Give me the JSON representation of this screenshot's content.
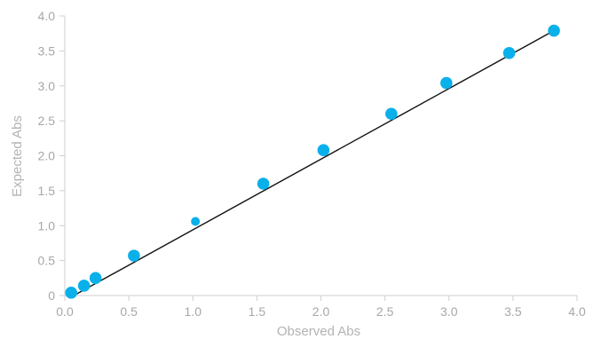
{
  "chart_data": {
    "type": "scatter",
    "title": "",
    "xlabel": "Observed Abs",
    "ylabel": "Expected Abs",
    "xlim": [
      0,
      4
    ],
    "ylim": [
      0,
      4
    ],
    "x_ticks": [
      "0.0",
      "0.5",
      "1.0",
      "1.5",
      "2.0",
      "2.5",
      "3.0",
      "3.5",
      "4.0"
    ],
    "y_ticks": [
      "0",
      "0.5",
      "1.0",
      "1.5",
      "2.0",
      "2.5",
      "3.0",
      "3.5",
      "4.0"
    ],
    "grid": false,
    "legend": "none",
    "colors": {
      "points": "#0ab0ea",
      "fit_line": "#111111",
      "axis": "#cfcfcf",
      "text": "#a7a7a7"
    },
    "series": [
      {
        "points": [
          {
            "x": 0.05,
            "y": 0.04
          },
          {
            "x": 0.15,
            "y": 0.14
          },
          {
            "x": 0.24,
            "y": 0.25
          },
          {
            "x": 0.54,
            "y": 0.57
          },
          {
            "x": 1.02,
            "y": 1.06
          },
          {
            "x": 1.55,
            "y": 1.6
          },
          {
            "x": 2.02,
            "y": 2.08
          },
          {
            "x": 2.55,
            "y": 2.6
          },
          {
            "x": 2.98,
            "y": 3.04
          },
          {
            "x": 3.47,
            "y": 3.47
          },
          {
            "x": 3.82,
            "y": 3.79
          }
        ]
      }
    ],
    "fit_line": {
      "from": {
        "x": 0.07,
        "y": 0.0
      },
      "to": {
        "x": 3.82,
        "y": 3.79
      }
    }
  }
}
